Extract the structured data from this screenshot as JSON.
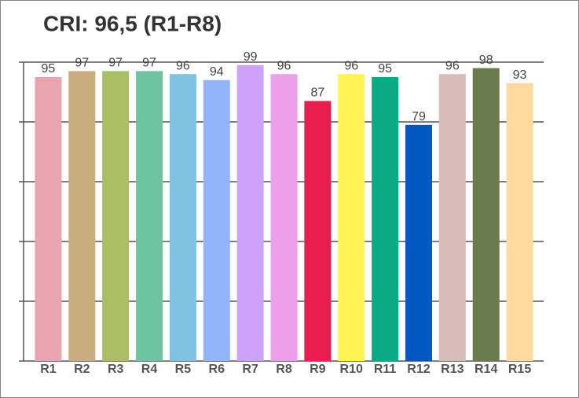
{
  "chart_data": {
    "type": "bar",
    "title": "CRI: 96,5 (R1-R8)",
    "categories": [
      "R1",
      "R2",
      "R3",
      "R4",
      "R5",
      "R6",
      "R7",
      "R8",
      "R9",
      "R10",
      "R11",
      "R12",
      "R13",
      "R14",
      "R15"
    ],
    "values": [
      95,
      97,
      97,
      97,
      96,
      94,
      99,
      96,
      87,
      96,
      95,
      79,
      96,
      98,
      93
    ],
    "colors": [
      "#e8a5b0",
      "#c9ac80",
      "#abbe64",
      "#6ec4a0",
      "#80c2e0",
      "#91b4fb",
      "#cda2fb",
      "#eca0ec",
      "#ea1e4e",
      "#fff354",
      "#0aab84",
      "#0058c0",
      "#d8bcb8",
      "#6a7c4e",
      "#ffd9a0"
    ],
    "ylim": [
      0,
      100
    ],
    "yticks": [
      0,
      20,
      40,
      60,
      80,
      100
    ],
    "grid": true
  }
}
